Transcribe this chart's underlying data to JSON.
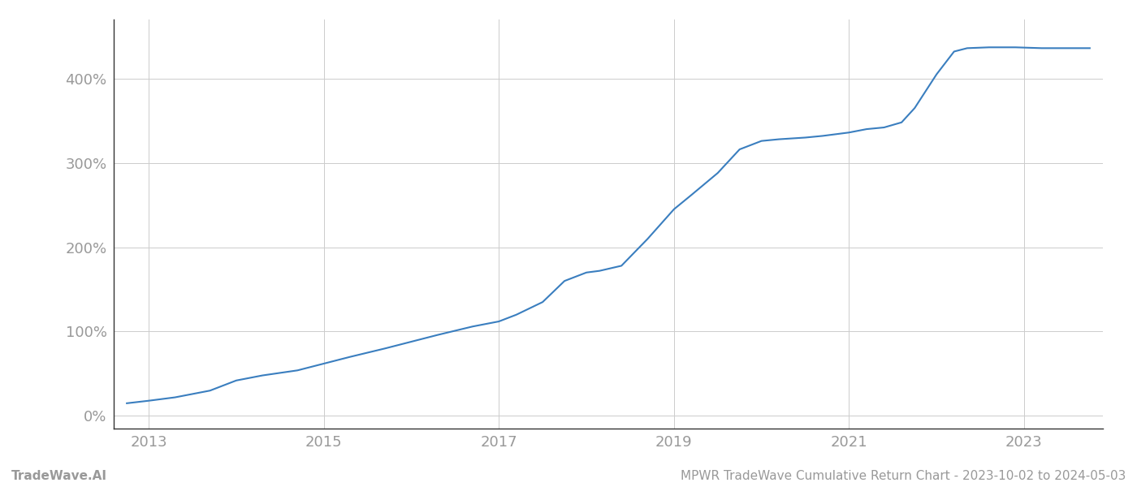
{
  "title": "MPWR TradeWave Cumulative Return Chart - 2023-10-02 to 2024-05-03",
  "watermark_left": "TradeWave.AI",
  "line_color": "#3a7ebf",
  "line_width": 1.5,
  "background_color": "#ffffff",
  "grid_color": "#cccccc",
  "x_ticks": [
    2013,
    2015,
    2017,
    2019,
    2021,
    2023
  ],
  "y_ticks": [
    0,
    100,
    200,
    300,
    400
  ],
  "xlim": [
    2012.6,
    2023.9
  ],
  "ylim": [
    -15,
    470
  ],
  "data_points": [
    [
      2012.75,
      15
    ],
    [
      2013.0,
      18
    ],
    [
      2013.3,
      22
    ],
    [
      2013.7,
      30
    ],
    [
      2014.0,
      42
    ],
    [
      2014.3,
      48
    ],
    [
      2014.7,
      54
    ],
    [
      2015.0,
      62
    ],
    [
      2015.3,
      70
    ],
    [
      2015.7,
      80
    ],
    [
      2016.0,
      88
    ],
    [
      2016.3,
      96
    ],
    [
      2016.7,
      106
    ],
    [
      2017.0,
      112
    ],
    [
      2017.2,
      120
    ],
    [
      2017.5,
      135
    ],
    [
      2017.75,
      160
    ],
    [
      2018.0,
      170
    ],
    [
      2018.15,
      172
    ],
    [
      2018.4,
      178
    ],
    [
      2018.7,
      210
    ],
    [
      2019.0,
      245
    ],
    [
      2019.2,
      262
    ],
    [
      2019.5,
      288
    ],
    [
      2019.75,
      316
    ],
    [
      2020.0,
      326
    ],
    [
      2020.2,
      328
    ],
    [
      2020.5,
      330
    ],
    [
      2020.7,
      332
    ],
    [
      2021.0,
      336
    ],
    [
      2021.2,
      340
    ],
    [
      2021.4,
      342
    ],
    [
      2021.6,
      348
    ],
    [
      2021.75,
      365
    ],
    [
      2022.0,
      405
    ],
    [
      2022.2,
      432
    ],
    [
      2022.35,
      436
    ],
    [
      2022.6,
      437
    ],
    [
      2022.9,
      437
    ],
    [
      2023.2,
      436
    ],
    [
      2023.6,
      436
    ],
    [
      2023.75,
      436
    ]
  ],
  "tick_label_color": "#999999",
  "tick_fontsize": 13,
  "footer_fontsize": 11,
  "footer_color": "#999999",
  "left_spine_color": "#333333",
  "bottom_spine_color": "#333333"
}
